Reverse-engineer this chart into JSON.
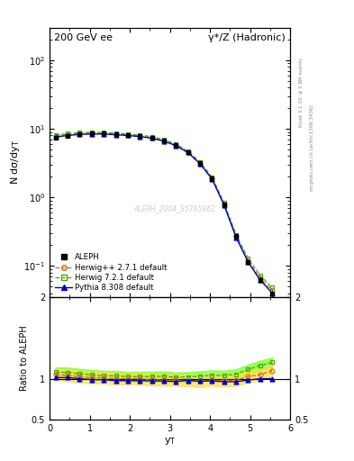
{
  "title_left": "200 GeV ee",
  "title_right": "γ*/Z (Hadronic)",
  "xlabel": "y$_\\mathrm{T}$",
  "ylabel_main": "N dσ/dy$_\\mathrm{T}$",
  "ylabel_ratio": "Ratio to ALEPH",
  "right_label_top": "Rivet 3.1.10; ≥ 2.8M events",
  "right_label_bottom": "mcplots.cern.ch [arXiv:1306.3436]",
  "watermark": "ALEPH_2004_S5765862",
  "aleph_x": [
    0.15,
    0.45,
    0.75,
    1.05,
    1.35,
    1.65,
    1.95,
    2.25,
    2.55,
    2.85,
    3.15,
    3.45,
    3.75,
    4.05,
    4.35,
    4.65,
    4.95,
    5.25,
    5.55
  ],
  "aleph_y": [
    7.5,
    7.9,
    8.3,
    8.5,
    8.5,
    8.4,
    8.2,
    7.9,
    7.5,
    6.8,
    5.9,
    4.6,
    3.2,
    1.9,
    0.8,
    0.27,
    0.115,
    0.062,
    0.04
  ],
  "aleph_yerr": [
    0.35,
    0.25,
    0.25,
    0.25,
    0.25,
    0.25,
    0.25,
    0.25,
    0.25,
    0.25,
    0.22,
    0.18,
    0.15,
    0.1,
    0.05,
    0.02,
    0.01,
    0.006,
    0.005
  ],
  "herwig_x": [
    0.15,
    0.45,
    0.75,
    1.05,
    1.35,
    1.65,
    1.95,
    2.25,
    2.55,
    2.85,
    3.15,
    3.45,
    3.75,
    4.05,
    4.35,
    4.65,
    4.95,
    5.25,
    5.55
  ],
  "herwig_y": [
    7.9,
    8.2,
    8.5,
    8.6,
    8.6,
    8.4,
    8.2,
    7.9,
    7.4,
    6.7,
    5.8,
    4.5,
    3.1,
    1.87,
    0.78,
    0.265,
    0.118,
    0.065,
    0.044
  ],
  "herwig72_x": [
    0.15,
    0.45,
    0.75,
    1.05,
    1.35,
    1.65,
    1.95,
    2.25,
    2.55,
    2.85,
    3.15,
    3.45,
    3.75,
    4.05,
    4.35,
    4.65,
    4.95,
    5.25,
    5.55
  ],
  "herwig72_y": [
    8.1,
    8.5,
    8.8,
    8.9,
    8.8,
    8.7,
    8.4,
    8.1,
    7.7,
    7.0,
    6.0,
    4.7,
    3.3,
    1.98,
    0.83,
    0.285,
    0.128,
    0.072,
    0.048
  ],
  "pythia_x": [
    0.15,
    0.45,
    0.75,
    1.05,
    1.35,
    1.65,
    1.95,
    2.25,
    2.55,
    2.85,
    3.15,
    3.45,
    3.75,
    4.05,
    4.35,
    4.65,
    4.95,
    5.25,
    5.55
  ],
  "pythia_y": [
    7.6,
    8.0,
    8.3,
    8.4,
    8.4,
    8.2,
    8.0,
    7.7,
    7.3,
    6.6,
    5.7,
    4.5,
    3.1,
    1.85,
    0.77,
    0.26,
    0.113,
    0.062,
    0.04
  ],
  "aleph_color": "#000000",
  "herwig_color": "#dd6600",
  "herwig72_color": "#44aa00",
  "pythia_color": "#0000cc",
  "herwig72_band_color": "#88ff44",
  "herwig_band_color": "#ffdd44",
  "xlim": [
    0,
    6.0
  ],
  "ylim_main": [
    0.035,
    300
  ],
  "ylim_ratio": [
    0.5,
    2.0
  ],
  "ratio_yticks": [
    0.5,
    1.0,
    2.0
  ],
  "ratio_ytick_labels": [
    "0.5",
    "1",
    "2"
  ]
}
